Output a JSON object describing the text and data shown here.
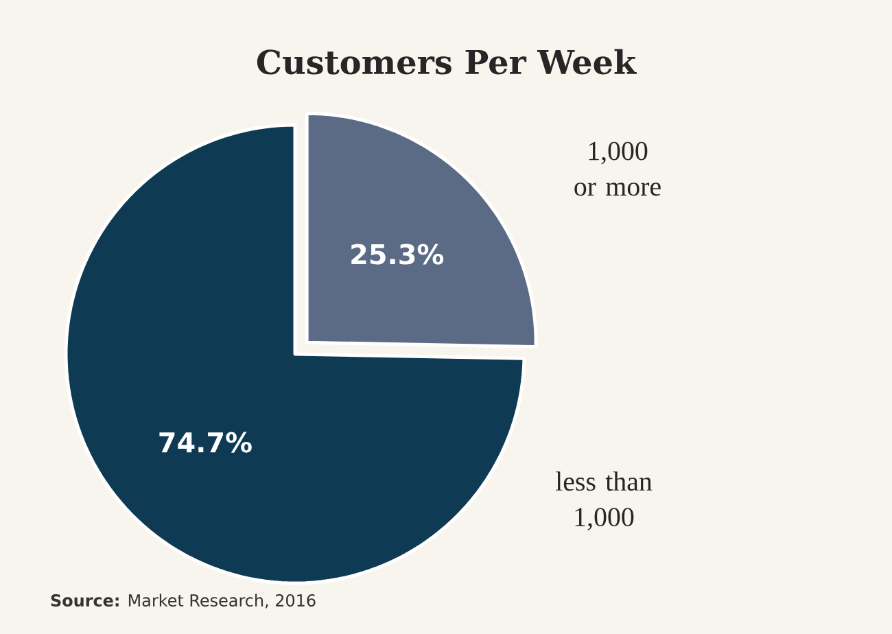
{
  "chart_data": {
    "type": "pie",
    "title": "Customers Per Week",
    "categories": [
      "1,000 or more",
      "less than 1,000"
    ],
    "values": [
      25.3,
      74.7
    ],
    "value_labels": [
      "25.3%",
      "74.7%"
    ],
    "colors": [
      "#5b6b86",
      "#0e3b53"
    ],
    "annotations": [
      "**Source:** Market Research, 2016"
    ]
  }
}
